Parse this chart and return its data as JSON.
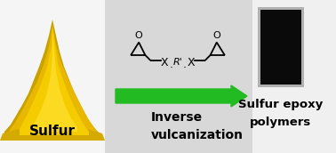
{
  "background_color": "#d8d8d8",
  "left_panel_bg": "#f5f5f5",
  "sulfur_label": "Sulfur",
  "arrow_label_line1": "Inverse",
  "arrow_label_line2": "vulcanization",
  "product_label_line1": "Sulfur epoxy",
  "product_label_line2": "polymers",
  "arrow_color": "#22bb22",
  "polymer_color": "#0a0a0a",
  "polymer_border": "#cccccc",
  "right_panel_bg": "#f0f0f0",
  "fig_width": 3.78,
  "fig_height": 1.72
}
